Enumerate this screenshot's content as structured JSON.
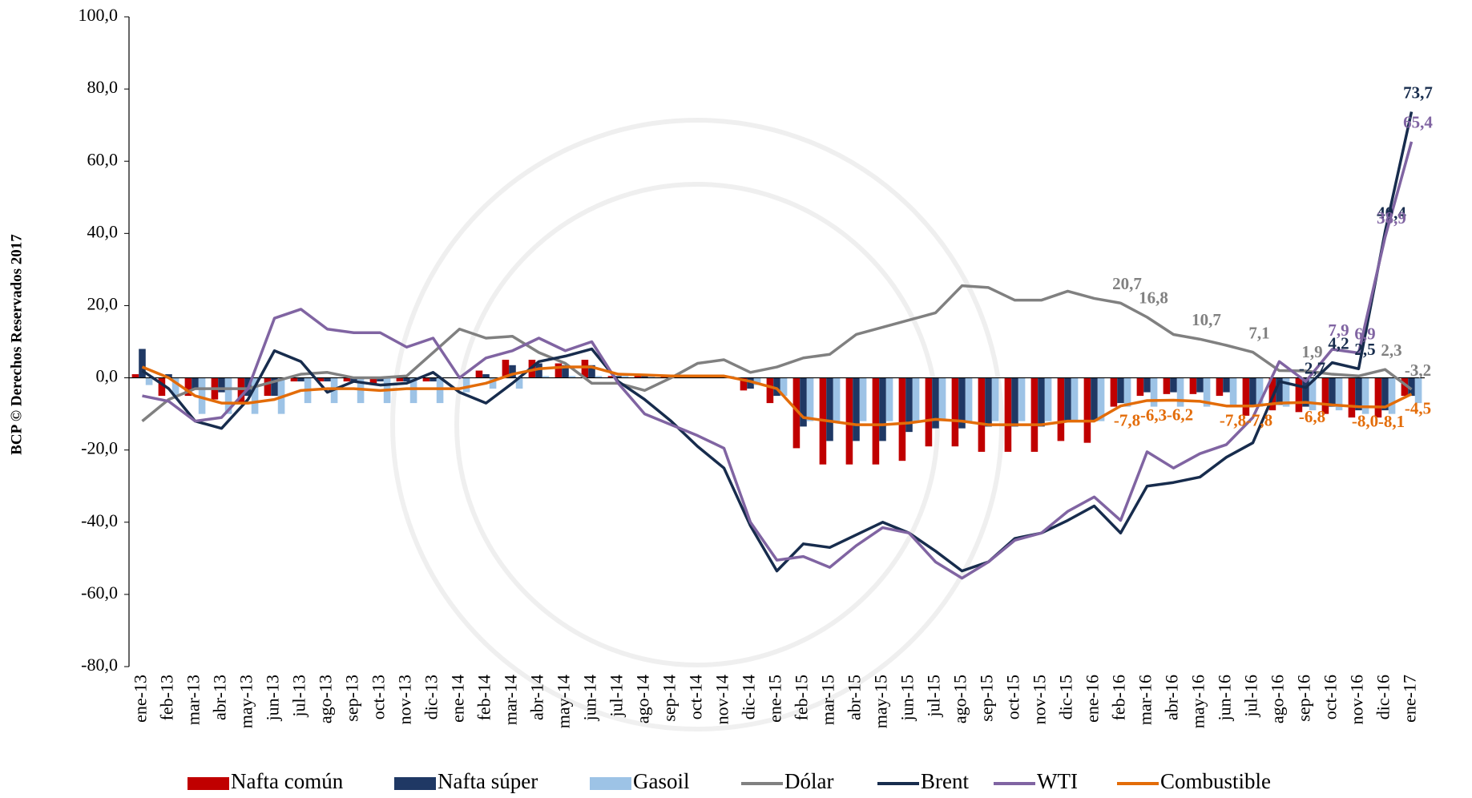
{
  "chart_data": {
    "type": "combo",
    "y_label": "BCP © Derechos Reservados 2017",
    "categories": [
      "ene-13",
      "feb-13",
      "mar-13",
      "abr-13",
      "may-13",
      "jun-13",
      "jul-13",
      "ago-13",
      "sep-13",
      "oct-13",
      "nov-13",
      "dic-13",
      "ene-14",
      "feb-14",
      "mar-14",
      "abr-14",
      "may-14",
      "jun-14",
      "jul-14",
      "ago-14",
      "sep-14",
      "oct-14",
      "nov-14",
      "dic-14",
      "ene-15",
      "feb-15",
      "mar-15",
      "abr-15",
      "may-15",
      "jun-15",
      "jul-15",
      "ago-15",
      "sep-15",
      "oct-15",
      "nov-15",
      "dic-15",
      "ene-16",
      "feb-16",
      "mar-16",
      "abr-16",
      "may-16",
      "jun-16",
      "jul-16",
      "ago-16",
      "sep-16",
      "oct-16",
      "nov-16",
      "dic-16",
      "ene-17"
    ],
    "ylim": [
      -80,
      100
    ],
    "yticks": [
      {
        "value": -80,
        "label": "-80,0"
      },
      {
        "value": -60,
        "label": "-60,0"
      },
      {
        "value": -40,
        "label": "-40,0"
      },
      {
        "value": -20,
        "label": "-20,0"
      },
      {
        "value": 0,
        "label": "0,0"
      },
      {
        "value": 20,
        "label": "20,0"
      },
      {
        "value": 40,
        "label": "40,0"
      },
      {
        "value": 60,
        "label": "60,0"
      },
      {
        "value": 80,
        "label": "80,0"
      },
      {
        "value": 100,
        "label": "100,0"
      }
    ],
    "grid": false,
    "legend": "bottom",
    "series": [
      {
        "name": "Nafta común",
        "type": "bar",
        "color": "#c00000",
        "values": [
          1,
          -5,
          -5,
          -6,
          -7,
          -5,
          -1,
          -1,
          -1,
          -2,
          -1,
          -1,
          0,
          2,
          5,
          5,
          4,
          5,
          0.5,
          0.5,
          0.5,
          0.5,
          0.5,
          -3.5,
          -7,
          -19.5,
          -24,
          -24,
          -24,
          -23,
          -19,
          -19,
          -20.5,
          -20.5,
          -20.5,
          -17.5,
          -18,
          -8,
          -5,
          -4.5,
          -4.5,
          -5,
          -10.5,
          -9,
          -9.5,
          -10,
          -11,
          -11,
          -5
        ]
      },
      {
        "name": "Nafta súper",
        "type": "bar",
        "color": "#1f3864",
        "values": [
          8,
          1,
          -3,
          -4,
          -5,
          -5,
          -1,
          -1,
          -1,
          -1,
          -1,
          -1,
          0,
          1,
          3.5,
          4,
          3.5,
          3.5,
          0.5,
          0.5,
          0.5,
          0.5,
          0.5,
          -3,
          -5,
          -13.5,
          -17.5,
          -17.5,
          -17.5,
          -15,
          -14,
          -14,
          -13.5,
          -13.5,
          -13.5,
          -12,
          -12,
          -7,
          -4,
          -4,
          -4,
          -4,
          -8,
          -7.5,
          -8,
          -8,
          -9,
          -9,
          -5
        ]
      },
      {
        "name": "Gasoil",
        "type": "bar",
        "color": "#9dc3e6",
        "values": [
          -2,
          -5,
          -10,
          -10,
          -10,
          -10,
          -7,
          -7,
          -7,
          -7,
          -7,
          -7,
          -4,
          -3,
          -3,
          0.5,
          0.5,
          0.5,
          0.5,
          0.5,
          0.5,
          0.5,
          0.5,
          -2,
          -5,
          -12,
          -12,
          -12,
          -12,
          -12,
          -12,
          -12,
          -12,
          -12,
          -12,
          -12,
          -12,
          -8,
          -8,
          -8,
          -8,
          -8,
          -8,
          -8,
          -9,
          -9,
          -10,
          -10,
          -7
        ]
      },
      {
        "name": "Dólar",
        "type": "line",
        "color": "#808080",
        "values": [
          -12,
          -6,
          -3,
          -3,
          -3,
          -1,
          1,
          1.5,
          0,
          0,
          0.5,
          7,
          13.5,
          11,
          11.5,
          7,
          4,
          -1.5,
          -1.5,
          -3.5,
          0,
          4,
          5,
          1.5,
          3,
          5.5,
          6.5,
          12,
          14,
          16,
          18,
          25.5,
          25,
          21.5,
          21.5,
          24,
          22,
          20.7,
          16.8,
          12,
          10.7,
          9,
          7.1,
          2,
          1.9,
          1,
          0.5,
          2.3,
          -3.2
        ],
        "value_labels": [
          null,
          null,
          null,
          null,
          null,
          null,
          null,
          null,
          null,
          null,
          null,
          null,
          null,
          null,
          null,
          null,
          null,
          null,
          null,
          null,
          null,
          null,
          null,
          null,
          null,
          null,
          null,
          null,
          null,
          null,
          null,
          null,
          null,
          null,
          null,
          null,
          null,
          "20,7",
          "16,8",
          null,
          "10,7",
          null,
          "7,1",
          null,
          "1,9",
          null,
          null,
          "2,3",
          "-3,2"
        ]
      },
      {
        "name": "Brent",
        "type": "line",
        "color": "#172c4d",
        "values": [
          2,
          -3,
          -12,
          -14,
          -6,
          7.5,
          4.5,
          -4,
          -1,
          -2,
          -1.5,
          1.5,
          -4,
          -7,
          -1.5,
          4.5,
          6,
          8,
          -1,
          -6,
          -12,
          -19,
          -25,
          -41,
          -53.5,
          -46,
          -47,
          -43.5,
          -40,
          -43,
          -48,
          -53.5,
          -51,
          -44.5,
          -43,
          -39.5,
          -35.5,
          -43,
          -30,
          -29,
          -27.5,
          -22,
          -18,
          -1,
          -2.7,
          4.2,
          2.5,
          40.4,
          73.7
        ],
        "value_labels": [
          null,
          null,
          null,
          null,
          null,
          null,
          null,
          null,
          null,
          null,
          null,
          null,
          null,
          null,
          null,
          null,
          null,
          null,
          null,
          null,
          null,
          null,
          null,
          null,
          null,
          null,
          null,
          null,
          null,
          null,
          null,
          null,
          null,
          null,
          null,
          null,
          null,
          null,
          null,
          null,
          null,
          null,
          null,
          null,
          "-2,7",
          "4,2",
          "2,5",
          "40,4",
          "73,7"
        ]
      },
      {
        "name": "WTI",
        "type": "line",
        "color": "#8064a2",
        "values": [
          -5,
          -6.5,
          -12,
          -11,
          -3,
          16.5,
          19,
          13.5,
          12.5,
          12.5,
          8.5,
          11,
          0,
          5.5,
          7.5,
          11,
          7.5,
          10,
          -1.5,
          -10,
          -13,
          -16,
          -19.5,
          -40,
          -50.5,
          -49.5,
          -52.5,
          -46.5,
          -41.5,
          -43,
          -51,
          -55.5,
          -51,
          -45,
          -43,
          -37,
          -33,
          -39.5,
          -20.5,
          -25,
          -21,
          -18.5,
          -11,
          4.5,
          -1,
          7.9,
          6.9,
          38.9,
          65.4
        ],
        "value_labels": [
          null,
          null,
          null,
          null,
          null,
          null,
          null,
          null,
          null,
          null,
          null,
          null,
          null,
          null,
          null,
          null,
          null,
          null,
          null,
          null,
          null,
          null,
          null,
          null,
          null,
          null,
          null,
          null,
          null,
          null,
          null,
          null,
          null,
          null,
          null,
          null,
          null,
          null,
          null,
          null,
          null,
          null,
          null,
          null,
          null,
          "7,9",
          "6,9",
          "38,9",
          "65,4"
        ]
      },
      {
        "name": "Combustible",
        "type": "line",
        "color": "#e36c09",
        "values": [
          3,
          0,
          -5,
          -7,
          -7,
          -6,
          -3.5,
          -3,
          -3,
          -3.5,
          -3,
          -3,
          -3,
          -1.5,
          1,
          2.5,
          3,
          3,
          1,
          0.8,
          0.5,
          0.5,
          0.5,
          -1,
          -3,
          -11,
          -12,
          -13,
          -13,
          -12.5,
          -11.5,
          -12,
          -13,
          -13,
          -13,
          -12,
          -12,
          -7.8,
          -6.3,
          -6.2,
          -6.5,
          -7.8,
          -7.8,
          -7,
          -6.8,
          -7.5,
          -8,
          -8.1,
          -4.5
        ],
        "value_labels": [
          null,
          null,
          null,
          null,
          null,
          null,
          null,
          null,
          null,
          null,
          null,
          null,
          null,
          null,
          null,
          null,
          null,
          null,
          null,
          null,
          null,
          null,
          null,
          null,
          null,
          null,
          null,
          null,
          null,
          null,
          null,
          null,
          null,
          null,
          null,
          null,
          null,
          "-7,8",
          "-6,3",
          "-6,2",
          null,
          "-7,8",
          "-7,8",
          null,
          "-6,8",
          null,
          "-8,0",
          "-8,1",
          "-4,5"
        ]
      }
    ]
  }
}
